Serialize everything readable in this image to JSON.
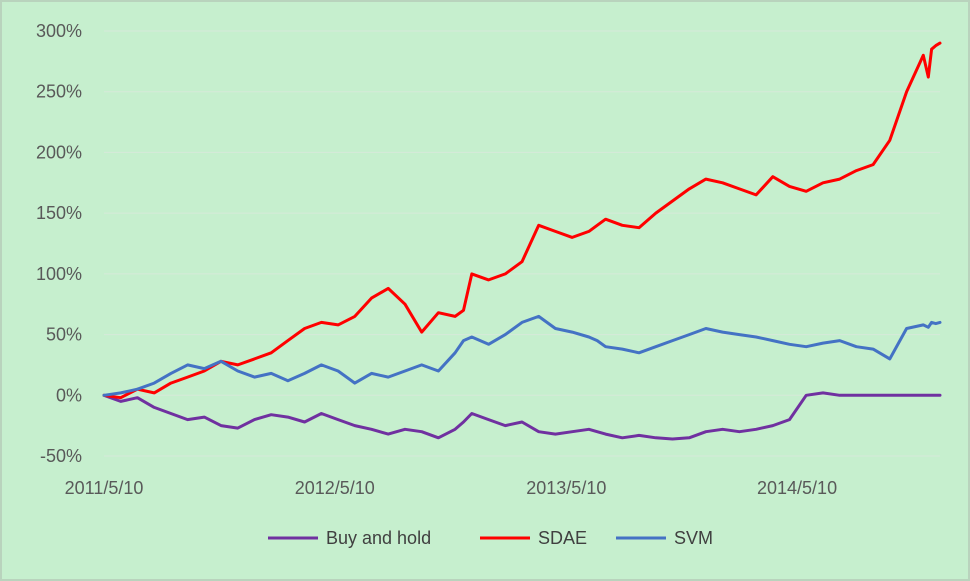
{
  "chart_data": {
    "type": "line",
    "title": "",
    "xlabel": "",
    "ylabel": "",
    "ylim": [
      -50,
      300
    ],
    "yticks": [
      300,
      250,
      200,
      150,
      100,
      50,
      0,
      -50
    ],
    "ytick_labels": [
      "300%",
      "250%",
      "200%",
      "150%",
      "100%",
      "50%",
      "0%",
      "-50%"
    ],
    "xlim": [
      0,
      1000
    ],
    "xticks": [
      0,
      276,
      553,
      829
    ],
    "xtick_labels": [
      "2011/5/10",
      "2012/5/10",
      "2013/5/10",
      "2014/5/10"
    ],
    "grid": true,
    "legend_position": "bottom",
    "x": [
      0,
      20,
      40,
      60,
      80,
      100,
      120,
      140,
      160,
      180,
      200,
      220,
      240,
      260,
      280,
      300,
      320,
      340,
      360,
      380,
      400,
      420,
      430,
      440,
      460,
      480,
      500,
      520,
      540,
      560,
      580,
      590,
      600,
      620,
      640,
      660,
      680,
      700,
      720,
      740,
      760,
      780,
      800,
      820,
      840,
      860,
      880,
      900,
      920,
      940,
      960,
      980,
      986,
      990,
      995,
      1000
    ],
    "series": [
      {
        "name": "Buy and hold",
        "color": "#7030a0",
        "values": [
          0,
          -5,
          -2,
          -10,
          -15,
          -20,
          -18,
          -25,
          -27,
          -20,
          -16,
          -18,
          -22,
          -15,
          -20,
          -25,
          -28,
          -32,
          -28,
          -30,
          -35,
          -28,
          -22,
          -15,
          -20,
          -25,
          -22,
          -30,
          -32,
          -30,
          -28,
          -30,
          -32,
          -35,
          -33,
          -35,
          -36,
          -35,
          -30,
          -28,
          -30,
          -28,
          -25,
          -20,
          0,
          2,
          0,
          0,
          0,
          0,
          0,
          0,
          0,
          0,
          0,
          0
        ]
      },
      {
        "name": "SDAE",
        "color": "#ff0000",
        "values": [
          0,
          -2,
          5,
          2,
          10,
          15,
          20,
          28,
          25,
          30,
          35,
          45,
          55,
          60,
          58,
          65,
          80,
          88,
          75,
          52,
          68,
          65,
          70,
          100,
          95,
          100,
          110,
          140,
          135,
          130,
          135,
          140,
          145,
          140,
          138,
          150,
          160,
          170,
          178,
          175,
          170,
          165,
          180,
          172,
          168,
          175,
          178,
          185,
          190,
          210,
          250,
          280,
          262,
          285,
          288,
          290
        ]
      },
      {
        "name": "SVM",
        "color": "#4472c4",
        "values": [
          0,
          2,
          5,
          10,
          18,
          25,
          22,
          28,
          20,
          15,
          18,
          12,
          18,
          25,
          20,
          10,
          18,
          15,
          20,
          25,
          20,
          35,
          45,
          48,
          42,
          50,
          60,
          65,
          55,
          52,
          48,
          45,
          40,
          38,
          35,
          40,
          45,
          50,
          55,
          52,
          50,
          48,
          45,
          42,
          40,
          43,
          45,
          40,
          38,
          30,
          55,
          58,
          56,
          60,
          59,
          60
        ]
      }
    ]
  }
}
